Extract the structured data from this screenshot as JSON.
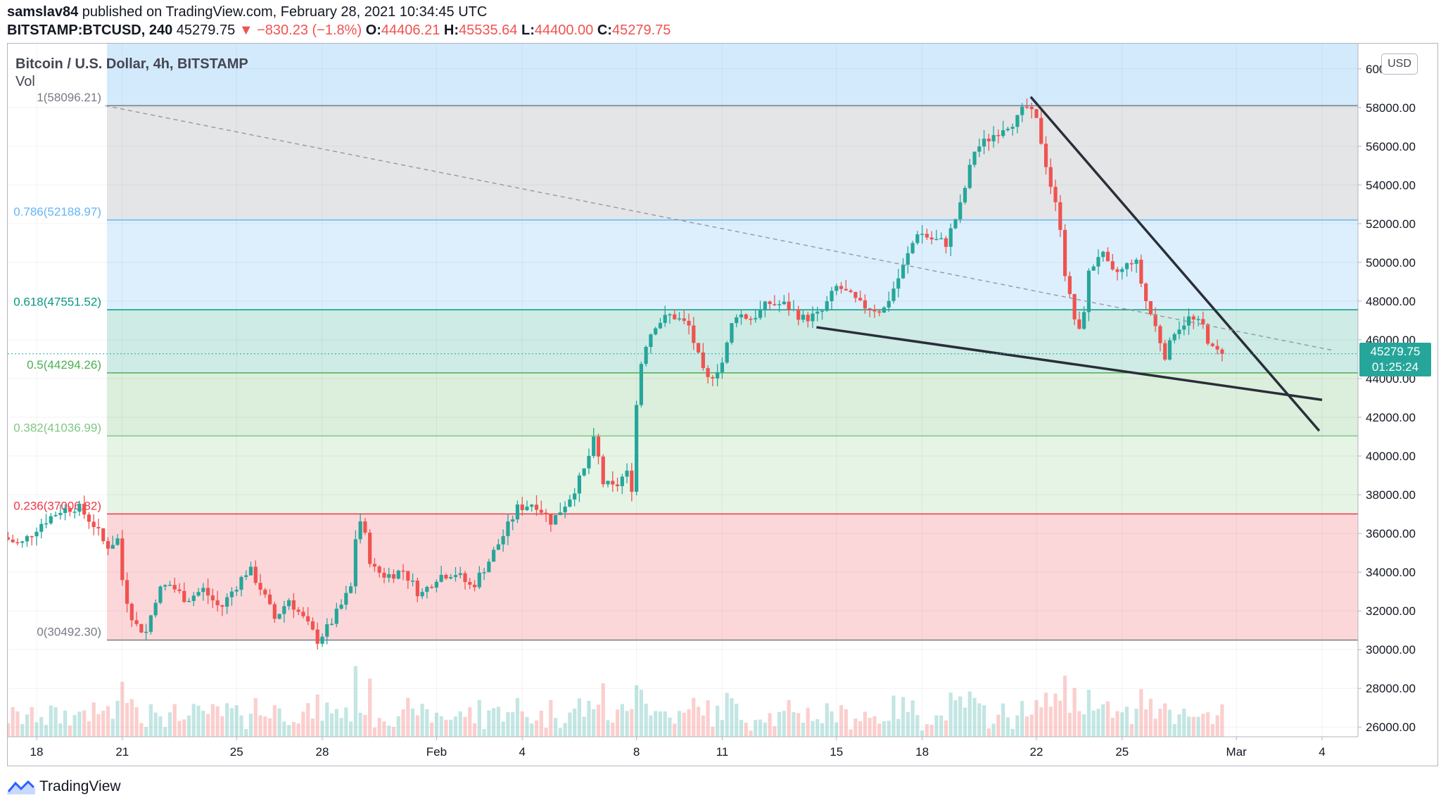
{
  "header": {
    "author": "samslav84",
    "published": "published on TradingView.com, February 28, 2021 10:34:45 UTC",
    "symbol": "BITSTAMP:BTCUSD, 240",
    "last": "45279.75",
    "change": "▼ −830.23 (−1.8%)",
    "o_label": "O:",
    "o_value": "44406.21",
    "h_label": "H:",
    "h_value": "45535.64",
    "l_label": "L:",
    "l_value": "44400.00",
    "c_label": "C:",
    "c_value": "45279.75"
  },
  "legend": {
    "title": "Bitcoin / U.S. Dollar, 4h, BITSTAMP",
    "vol": "Vol"
  },
  "currency": "USD",
  "price_tag": {
    "price": "45279.75",
    "countdown": "01:25:24"
  },
  "footer": {
    "brand": "TradingView"
  },
  "colors": {
    "up": "#26a69a",
    "down": "#ef5350",
    "fib_236": "#f23645",
    "fib_382": "#81c784",
    "fib_5": "#4caf50",
    "fib_618": "#089981",
    "fib_786": "#64b5f6",
    "fib_1": "#787b86"
  },
  "chart_data": {
    "type": "candlestick",
    "y_unit": "USD",
    "ylim": [
      25500,
      61300
    ],
    "y_ticks": [
      26000,
      28000,
      30000,
      32000,
      34000,
      36000,
      38000,
      40000,
      42000,
      44000,
      46000,
      48000,
      50000,
      52000,
      54000,
      56000,
      58000,
      60000
    ],
    "x_ticks": [
      {
        "label": "18",
        "day": 18
      },
      {
        "label": "21",
        "day": 21
      },
      {
        "label": "25",
        "day": 25
      },
      {
        "label": "28",
        "day": 28
      },
      {
        "label": "Feb",
        "day": 32
      },
      {
        "label": "4",
        "day": 35
      },
      {
        "label": "8",
        "day": 39
      },
      {
        "label": "11",
        "day": 42
      },
      {
        "label": "15",
        "day": 46
      },
      {
        "label": "18",
        "day": 49
      },
      {
        "label": "22",
        "day": 53
      },
      {
        "label": "25",
        "day": 56
      },
      {
        "label": "Mar",
        "day": 60
      },
      {
        "label": "4",
        "day": 63
      }
    ],
    "fib_levels": [
      {
        "ratio": 1,
        "price": 58096.21,
        "label": "1(58096.21)"
      },
      {
        "ratio": 0.786,
        "price": 52188.97,
        "label": "0.786(52188.97)"
      },
      {
        "ratio": 0.618,
        "price": 47551.52,
        "label": "0.618(47551.52)"
      },
      {
        "ratio": 0.5,
        "price": 44294.26,
        "label": "0.5(44294.26)"
      },
      {
        "ratio": 0.382,
        "price": 41036.99,
        "label": "0.382(41036.99)"
      },
      {
        "ratio": 0.236,
        "price": 37006.82,
        "label": "0.236(37006.82)"
      },
      {
        "ratio": 0,
        "price": 30492.3,
        "label": "0(30492.30)"
      }
    ],
    "path_points": [
      [
        17.0,
        35800
      ],
      [
        17.6,
        35400
      ],
      [
        18.3,
        36500
      ],
      [
        19.0,
        37200
      ],
      [
        19.6,
        37400
      ],
      [
        20.2,
        36400
      ],
      [
        20.6,
        35300
      ],
      [
        21.0,
        35700
      ],
      [
        21.2,
        33200
      ],
      [
        21.6,
        31300
      ],
      [
        22.0,
        30900
      ],
      [
        22.4,
        33000
      ],
      [
        22.8,
        33400
      ],
      [
        23.4,
        32600
      ],
      [
        24.0,
        33100
      ],
      [
        24.6,
        32100
      ],
      [
        25.0,
        33000
      ],
      [
        25.6,
        34200
      ],
      [
        26.0,
        33200
      ],
      [
        26.5,
        31600
      ],
      [
        27.0,
        32600
      ],
      [
        27.6,
        31400
      ],
      [
        28.0,
        30500
      ],
      [
        28.4,
        31200
      ],
      [
        28.8,
        32200
      ],
      [
        29.2,
        33300
      ],
      [
        29.4,
        37000
      ],
      [
        29.6,
        36300
      ],
      [
        29.9,
        34200
      ],
      [
        30.4,
        33800
      ],
      [
        31.0,
        34100
      ],
      [
        31.6,
        32800
      ],
      [
        32.2,
        33800
      ],
      [
        32.8,
        34000
      ],
      [
        33.4,
        33200
      ],
      [
        34.0,
        34600
      ],
      [
        34.5,
        35900
      ],
      [
        35.0,
        37300
      ],
      [
        35.6,
        37600
      ],
      [
        36.2,
        36600
      ],
      [
        36.8,
        37800
      ],
      [
        37.3,
        39100
      ],
      [
        37.7,
        40900
      ],
      [
        38.0,
        38600
      ],
      [
        38.4,
        38300
      ],
      [
        38.8,
        39200
      ],
      [
        39.0,
        38400
      ],
      [
        39.2,
        43500
      ],
      [
        39.4,
        45500
      ],
      [
        39.8,
        46800
      ],
      [
        40.4,
        47300
      ],
      [
        41.0,
        46700
      ],
      [
        41.6,
        43800
      ],
      [
        42.2,
        44900
      ],
      [
        42.6,
        47400
      ],
      [
        43.2,
        47100
      ],
      [
        43.8,
        47900
      ],
      [
        44.4,
        47800
      ],
      [
        45.0,
        47100
      ],
      [
        45.6,
        47300
      ],
      [
        46.2,
        48800
      ],
      [
        47.0,
        47800
      ],
      [
        47.8,
        47500
      ],
      [
        48.4,
        49400
      ],
      [
        49.0,
        51600
      ],
      [
        49.5,
        51200
      ],
      [
        50.0,
        51000
      ],
      [
        50.5,
        52900
      ],
      [
        51.0,
        55800
      ],
      [
        51.5,
        56400
      ],
      [
        52.0,
        57000
      ],
      [
        52.5,
        57400
      ],
      [
        52.8,
        58096
      ],
      [
        53.2,
        57200
      ],
      [
        53.6,
        54400
      ],
      [
        54.0,
        51900
      ],
      [
        54.2,
        49000
      ],
      [
        54.5,
        47100
      ],
      [
        54.7,
        46200
      ],
      [
        55.0,
        49400
      ],
      [
        55.4,
        50600
      ],
      [
        55.8,
        49400
      ],
      [
        56.2,
        49600
      ],
      [
        56.6,
        50300
      ],
      [
        57.0,
        48000
      ],
      [
        57.3,
        46800
      ],
      [
        57.7,
        45100
      ],
      [
        58.0,
        46500
      ],
      [
        58.5,
        47100
      ],
      [
        59.0,
        46700
      ],
      [
        59.3,
        45500
      ],
      [
        59.6,
        45280
      ]
    ],
    "trendlines": [
      {
        "name": "resistance",
        "from": {
          "day": 52.8,
          "price": 58550
        },
        "to": {
          "day": 62.9,
          "price": 41300
        }
      },
      {
        "name": "support",
        "from": {
          "day": 45.3,
          "price": 46650
        },
        "to": {
          "day": 63.0,
          "price": 42900
        }
      },
      {
        "name": "fib-diagonal",
        "from": {
          "day": 20.4,
          "price": 58096
        },
        "to": {
          "day": 63.4,
          "price": 45450
        }
      }
    ],
    "last_price": 45279.75
  }
}
